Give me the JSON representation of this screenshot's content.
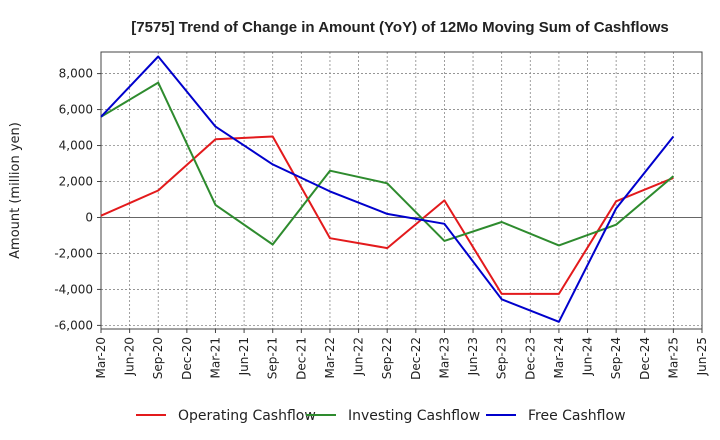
{
  "chart_data": {
    "type": "line",
    "title": "[7575]  Trend of Change in Amount (YoY) of 12Mo Moving Sum of Cashflows",
    "ylabel": "Amount (million yen)",
    "xlabel": "",
    "ylim": [
      -6200,
      9200
    ],
    "y_ticks": [
      8000,
      6000,
      4000,
      2000,
      0,
      -2000,
      -4000,
      -6000
    ],
    "y_tick_labels": [
      "8,000",
      "6,000",
      "4,000",
      "2,000",
      "0",
      "-2,000",
      "-4,000",
      "-6,000"
    ],
    "x_tick_labels": [
      "Mar-20",
      "Jun-20",
      "Sep-20",
      "Dec-20",
      "Mar-21",
      "Jun-21",
      "Sep-21",
      "Dec-21",
      "Mar-22",
      "Jun-22",
      "Sep-22",
      "Dec-22",
      "Mar-23",
      "Jun-23",
      "Sep-23",
      "Dec-23",
      "Mar-24",
      "Jun-24",
      "Sep-24",
      "Dec-24",
      "Mar-25",
      "Jun-25"
    ],
    "categories": [
      "Mar-20",
      "Sep-20",
      "Mar-21",
      "Sep-21",
      "Mar-22",
      "Sep-22",
      "Mar-23",
      "Sep-23",
      "Mar-24",
      "Sep-24",
      "Mar-25"
    ],
    "grid": true,
    "legend_position": "bottom",
    "series": [
      {
        "name": "Operating Cashflow",
        "color": "#e31a1c",
        "values": [
          100,
          1500,
          4350,
          4500,
          -1150,
          -1700,
          950,
          -4250,
          -4250,
          900,
          2200
        ]
      },
      {
        "name": "Investing Cashflow",
        "color": "#2e8b2e",
        "values": [
          5600,
          7500,
          700,
          -1500,
          2600,
          1900,
          -1300,
          -250,
          -1550,
          -400,
          2300
        ]
      },
      {
        "name": "Free Cashflow",
        "color": "#0000cc",
        "values": [
          5600,
          8950,
          5050,
          2950,
          1450,
          200,
          -350,
          -4550,
          -5800,
          500,
          4500
        ]
      }
    ]
  }
}
